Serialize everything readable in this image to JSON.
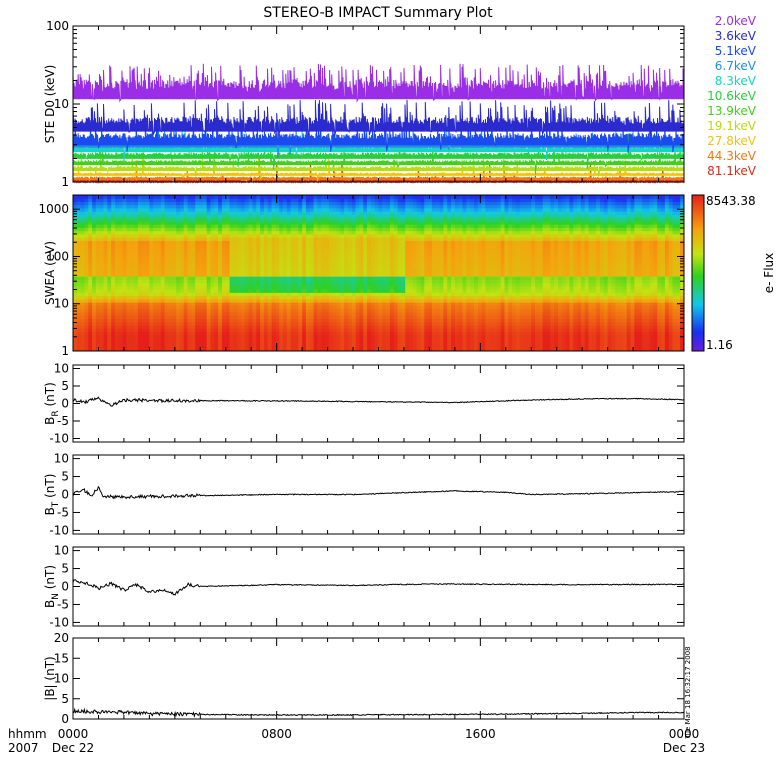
{
  "title": "STEREO-B IMPACT Summary Plot",
  "chart_data": [
    {
      "id": "ste",
      "type": "line",
      "ylabel": "STE D0 (keV)",
      "yscale": "log",
      "ylim": [
        1,
        100
      ],
      "yticks": [
        {
          "value": 1,
          "label": "1"
        },
        {
          "value": 10,
          "label": "10"
        },
        {
          "value": 100,
          "label": "100"
        }
      ],
      "legend_placement": "right",
      "series": [
        {
          "name": "2.0keV",
          "color": "#9a2ee6",
          "level": 18,
          "spread": 0.14,
          "spikes": 0.35
        },
        {
          "name": "3.6keV",
          "color": "#2a2acf",
          "level": 6.2,
          "spread": 0.1,
          "spikes": 0.22
        },
        {
          "name": "5.1keV",
          "color": "#1a4af0",
          "level": 3.9,
          "spread": 0.08,
          "spikes": 0.12
        },
        {
          "name": "6.7keV",
          "color": "#1f8fe6",
          "level": 3.3,
          "spread": 0.05,
          "spikes": 0.05
        },
        {
          "name": "8.3keV",
          "color": "#18d4c2",
          "level": 2.8,
          "spread": 0.04,
          "spikes": 0.03
        },
        {
          "name": "10.6keV",
          "color": "#27cf3c",
          "level": 2.3,
          "spread": 0.04,
          "spikes": 0.02
        },
        {
          "name": "13.9keV",
          "color": "#3fd11e",
          "level": 1.85,
          "spread": 0.03,
          "spikes": 0.02
        },
        {
          "name": "19.1keV",
          "color": "#b7dc12",
          "level": 1.55,
          "spread": 0.03,
          "spikes": 0.02
        },
        {
          "name": "27.8keV",
          "color": "#f2c20e",
          "level": 1.3,
          "spread": 0.02,
          "spikes": 0.02
        },
        {
          "name": "44.3keV",
          "color": "#f07a10",
          "level": 1.15,
          "spread": 0.02,
          "spikes": 0.02
        },
        {
          "name": "81.1keV",
          "color": "#d92c14",
          "level": 1.05,
          "spread": 0.02,
          "spikes": 0.02
        }
      ]
    },
    {
      "id": "swea",
      "type": "heatmap",
      "ylabel": "SWEA (eV)",
      "yscale": "log",
      "ylim": [
        1,
        2000
      ],
      "yticks": [
        {
          "value": 1,
          "label": "1"
        },
        {
          "value": 10,
          "label": "10"
        },
        {
          "value": 100,
          "label": "100"
        },
        {
          "value": 1000,
          "label": "1000"
        }
      ],
      "colorbar": {
        "label": "e- Flux",
        "max_label": "8543.38",
        "min_label": "1.16",
        "scale": "log"
      }
    },
    {
      "id": "br",
      "type": "line",
      "ylabel_main": "B",
      "ylabel_sub": "R",
      "ylabel_unit": "(nT)",
      "ylim": [
        -11,
        11
      ],
      "yticks": [
        {
          "value": -10,
          "label": "-10"
        },
        {
          "value": -5,
          "label": "-5"
        },
        {
          "value": 0,
          "label": "0"
        },
        {
          "value": 5,
          "label": "5"
        },
        {
          "value": 10,
          "label": "10"
        }
      ],
      "series": [
        {
          "color": "#000000",
          "points": [
            [
              0,
              1.0
            ],
            [
              0.5,
              0.5
            ],
            [
              1.0,
              1.5
            ],
            [
              1.5,
              -0.5
            ],
            [
              2.0,
              1.0
            ],
            [
              2.5,
              1.0
            ],
            [
              3,
              0.8
            ],
            [
              6,
              0.8
            ],
            [
              9,
              0.7
            ],
            [
              12,
              0.5
            ],
            [
              15,
              0.3
            ],
            [
              18,
              1.0
            ],
            [
              20,
              1.3
            ],
            [
              22,
              1.4
            ],
            [
              24,
              1.1
            ]
          ]
        }
      ]
    },
    {
      "id": "bt",
      "type": "line",
      "ylabel_main": "B",
      "ylabel_sub": "T",
      "ylabel_unit": "(nT)",
      "ylim": [
        -11,
        11
      ],
      "yticks": [
        {
          "value": -10,
          "label": "-10"
        },
        {
          "value": -5,
          "label": "-5"
        },
        {
          "value": 0,
          "label": "0"
        },
        {
          "value": 5,
          "label": "5"
        },
        {
          "value": 10,
          "label": "10"
        }
      ],
      "series": [
        {
          "color": "#000000",
          "points": [
            [
              0,
              0.0
            ],
            [
              0.4,
              1.5
            ],
            [
              0.7,
              -0.5
            ],
            [
              1.0,
              2.0
            ],
            [
              1.2,
              -0.5
            ],
            [
              2,
              -0.8
            ],
            [
              3,
              -0.5
            ],
            [
              5,
              -0.3
            ],
            [
              8,
              0.0
            ],
            [
              11,
              0.0
            ],
            [
              13,
              0.5
            ],
            [
              15,
              1.0
            ],
            [
              17,
              0.6
            ],
            [
              18,
              0.0
            ],
            [
              20,
              0.2
            ],
            [
              22,
              0.5
            ],
            [
              24,
              0.8
            ]
          ]
        }
      ]
    },
    {
      "id": "bn",
      "type": "line",
      "ylabel_main": "B",
      "ylabel_sub": "N",
      "ylabel_unit": "(nT)",
      "ylim": [
        -11,
        11
      ],
      "yticks": [
        {
          "value": -10,
          "label": "-10"
        },
        {
          "value": -5,
          "label": "-5"
        },
        {
          "value": 0,
          "label": "0"
        },
        {
          "value": 5,
          "label": "5"
        },
        {
          "value": 10,
          "label": "10"
        }
      ],
      "series": [
        {
          "color": "#000000",
          "points": [
            [
              0,
              1.5
            ],
            [
              0.5,
              1.0
            ],
            [
              1.0,
              -0.5
            ],
            [
              1.5,
              0.8
            ],
            [
              2.0,
              -1.0
            ],
            [
              2.5,
              0.5
            ],
            [
              3.0,
              -1.5
            ],
            [
              3.5,
              -1.0
            ],
            [
              4.0,
              -2.0
            ],
            [
              4.5,
              0.5
            ],
            [
              5,
              0.0
            ],
            [
              8,
              0.5
            ],
            [
              11,
              0.3
            ],
            [
              14,
              0.7
            ],
            [
              17,
              0.6
            ],
            [
              20,
              0.5
            ],
            [
              24,
              0.6
            ]
          ]
        }
      ]
    },
    {
      "id": "bmag",
      "type": "line",
      "ylabel": "|B| (nT)",
      "ylim": [
        0,
        20
      ],
      "yticks": [
        {
          "value": 0,
          "label": "0"
        },
        {
          "value": 5,
          "label": "5"
        },
        {
          "value": 10,
          "label": "10"
        },
        {
          "value": 15,
          "label": "15"
        },
        {
          "value": 20,
          "label": "20"
        }
      ],
      "series": [
        {
          "color": "#000000",
          "points": [
            [
              0,
              2.0
            ],
            [
              1,
              1.8
            ],
            [
              2,
              1.7
            ],
            [
              3,
              1.3
            ],
            [
              5,
              1.1
            ],
            [
              8,
              1.0
            ],
            [
              11,
              1.0
            ],
            [
              14,
              1.1
            ],
            [
              17,
              1.2
            ],
            [
              20,
              1.4
            ],
            [
              22,
              1.6
            ],
            [
              24,
              1.6
            ]
          ]
        }
      ],
      "annotation": "Tue Mar 18 16:32:17 2008"
    }
  ],
  "xaxis": {
    "range_hours": [
      0,
      24
    ],
    "row1_label": "hhmm",
    "row2_label": "2007",
    "ticks": [
      {
        "hour": 0,
        "label": "0000",
        "date": "Dec 22"
      },
      {
        "hour": 8,
        "label": "0800",
        "date": ""
      },
      {
        "hour": 16,
        "label": "1600",
        "date": ""
      },
      {
        "hour": 24,
        "label": "0000",
        "date": "Dec 23"
      }
    ]
  }
}
